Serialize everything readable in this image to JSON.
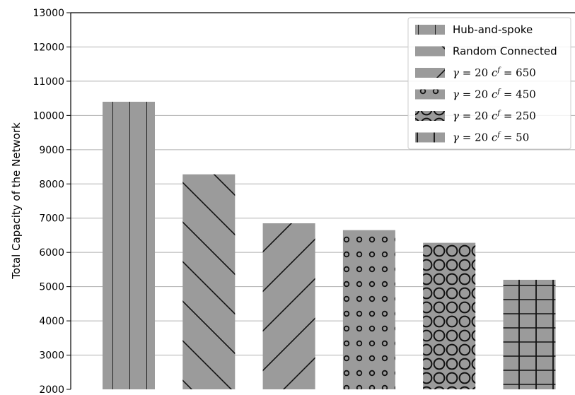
{
  "chart_data": {
    "type": "bar",
    "ylabel": "Total Capacity of the Network",
    "ylim": [
      2000,
      13000
    ],
    "yticks": [
      2000,
      3000,
      4000,
      5000,
      6000,
      7000,
      8000,
      9000,
      10000,
      11000,
      12000,
      13000
    ],
    "grid": "horizontal",
    "legend_position": "top-right",
    "bar_color": "#9b9b9b",
    "series": [
      {
        "name": "Hub-and-spoke",
        "math": false,
        "value": 10400,
        "hatch": "vertical"
      },
      {
        "name": "Random Connected",
        "math": false,
        "value": 8280,
        "hatch": "backslash"
      },
      {
        "name": "γ = 20 c^f = 650",
        "math": true,
        "gamma": "20",
        "cf": "650",
        "value": 6850,
        "hatch": "slash"
      },
      {
        "name": "γ = 20 c^f = 450",
        "math": true,
        "gamma": "20",
        "cf": "450",
        "value": 6650,
        "hatch": "small-circles"
      },
      {
        "name": "γ = 20 c^f = 250",
        "math": true,
        "gamma": "20",
        "cf": "250",
        "value": 6280,
        "hatch": "large-circles"
      },
      {
        "name": "γ = 20 c^f = 50",
        "math": true,
        "gamma": "20",
        "cf": "50",
        "value": 5200,
        "hatch": "grid"
      }
    ]
  }
}
